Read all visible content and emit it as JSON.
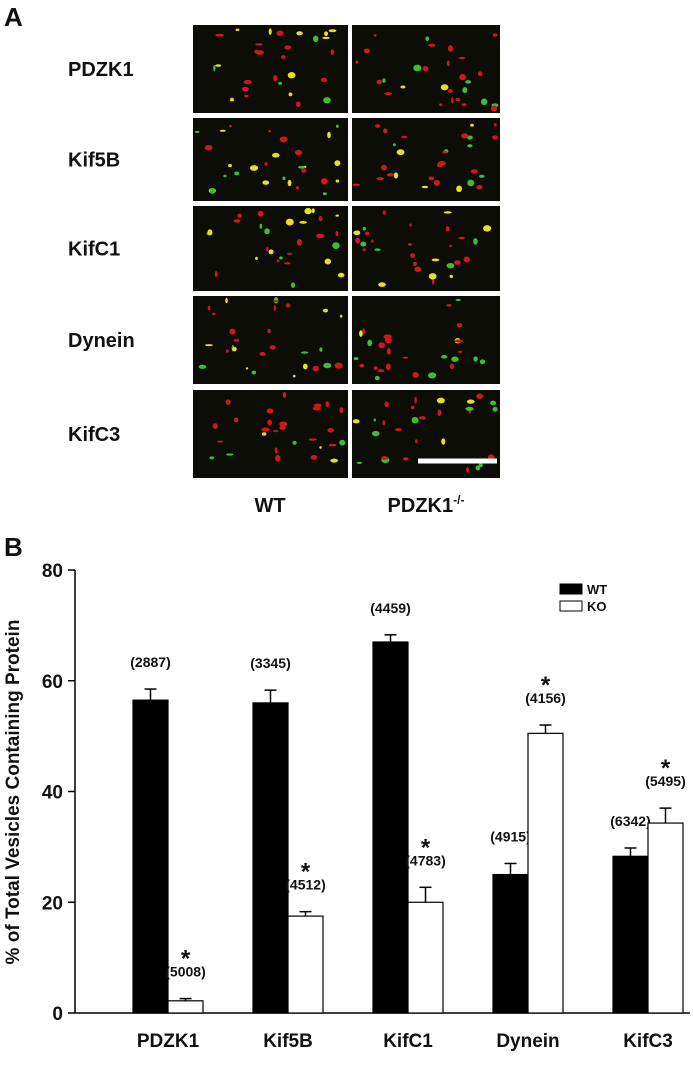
{
  "panel_a": {
    "label": "A",
    "rows": [
      "PDZK1",
      "Kif5B",
      "KifC1",
      "Dynein",
      "KifC3"
    ],
    "columns": [
      {
        "text": "WT"
      },
      {
        "text": "PDZK1",
        "superscript": "-/-"
      }
    ]
  },
  "chart_data": {
    "type": "bar",
    "panel_label": "B",
    "y_label": "% of Total Vesicles Containing Protein",
    "categories": [
      "PDZK1",
      "Kif5B",
      "KifC1",
      "Dynein",
      "KifC3"
    ],
    "series": [
      {
        "name": "WT",
        "color": "#000000",
        "values": [
          56.5,
          56,
          67,
          25,
          28.3
        ],
        "errors": [
          2,
          2.3,
          1.3,
          2,
          1.5
        ],
        "annotations": [
          "(2887)",
          "(3345)",
          "(4459)",
          "(4915)",
          "(6342)"
        ]
      },
      {
        "name": "KO",
        "color": "#ffffff",
        "values": [
          2.2,
          17.5,
          20,
          50.5,
          34.3
        ],
        "errors": [
          0.4,
          0.8,
          2.7,
          1.5,
          2.7
        ],
        "annotations": [
          "(5008)",
          "(4512)",
          "(4783)",
          "(4156)",
          "(5495)"
        ],
        "markers": [
          "*",
          "*",
          "*",
          "*",
          "*"
        ]
      }
    ],
    "ylim": [
      0,
      80
    ],
    "yticks": [
      0,
      20,
      40,
      60,
      80
    ],
    "legend": "upper right"
  }
}
